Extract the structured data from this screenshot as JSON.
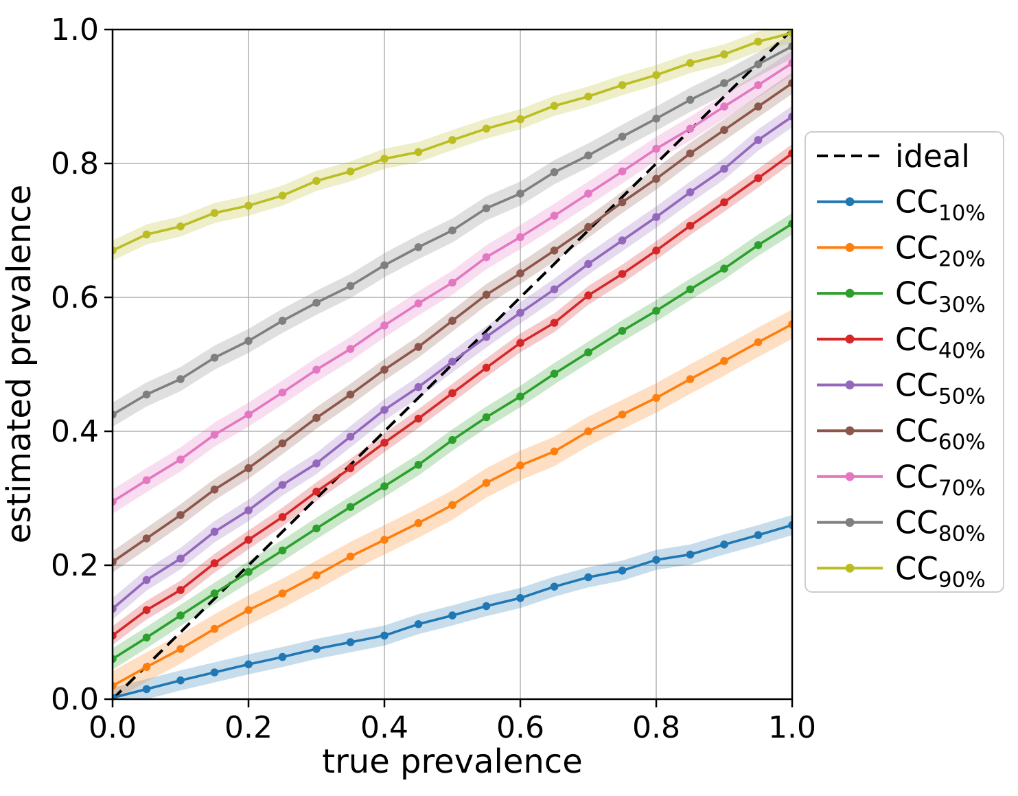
{
  "chart_data": {
    "type": "line",
    "title": "",
    "xlabel": "true prevalence",
    "ylabel": "estimated prevalence",
    "xlim": [
      0,
      1
    ],
    "ylim": [
      0,
      1
    ],
    "grid": true,
    "background_color": "#ffffff",
    "grid_color": "#b0b0b0",
    "axis_color": "#000000",
    "xtick_labels": [
      "0.0",
      "0.2",
      "0.4",
      "0.6",
      "0.8",
      "1.0"
    ],
    "ytick_labels": [
      "0.0",
      "0.2",
      "0.4",
      "0.6",
      "0.8",
      "1.0"
    ],
    "tick_values": [
      0,
      0.2,
      0.4,
      0.6,
      0.8,
      1.0
    ],
    "legend_position": "outside right",
    "legend_border_color": "#cccccc",
    "ideal": {
      "label": "ideal",
      "color": "#000000",
      "style": "dashed",
      "from": [
        0,
        0
      ],
      "to": [
        1,
        1
      ]
    },
    "x": [
      0.0,
      0.05,
      0.1,
      0.15,
      0.2,
      0.25,
      0.3,
      0.35,
      0.4,
      0.45,
      0.5,
      0.55,
      0.6,
      0.65,
      0.7,
      0.75,
      0.8,
      0.85,
      0.9,
      0.95,
      1.0
    ],
    "series": [
      {
        "name": "CC_10%",
        "legend_main": "CC",
        "legend_sub": "10%",
        "color": "#1f77b4",
        "band_halfwidth": 0.015,
        "values": [
          0.002,
          0.015,
          0.028,
          0.04,
          0.052,
          0.063,
          0.075,
          0.085,
          0.095,
          0.112,
          0.125,
          0.139,
          0.151,
          0.168,
          0.182,
          0.192,
          0.208,
          0.216,
          0.231,
          0.245,
          0.26
        ]
      },
      {
        "name": "CC_20%",
        "legend_main": "CC",
        "legend_sub": "20%",
        "color": "#ff7f0e",
        "band_halfwidth": 0.022,
        "values": [
          0.02,
          0.048,
          0.075,
          0.105,
          0.133,
          0.158,
          0.185,
          0.213,
          0.238,
          0.263,
          0.29,
          0.323,
          0.349,
          0.37,
          0.4,
          0.425,
          0.45,
          0.478,
          0.505,
          0.533,
          0.56
        ]
      },
      {
        "name": "CC_30%",
        "legend_main": "CC",
        "legend_sub": "30%",
        "color": "#2ca02c",
        "band_halfwidth": 0.016,
        "values": [
          0.06,
          0.092,
          0.125,
          0.158,
          0.19,
          0.222,
          0.255,
          0.287,
          0.318,
          0.35,
          0.387,
          0.421,
          0.452,
          0.486,
          0.518,
          0.55,
          0.58,
          0.612,
          0.643,
          0.678,
          0.71
        ]
      },
      {
        "name": "CC_40%",
        "legend_main": "CC",
        "legend_sub": "40%",
        "color": "#d62728",
        "band_halfwidth": 0.014,
        "values": [
          0.095,
          0.133,
          0.163,
          0.203,
          0.238,
          0.272,
          0.31,
          0.345,
          0.383,
          0.419,
          0.457,
          0.495,
          0.532,
          0.562,
          0.603,
          0.635,
          0.67,
          0.707,
          0.742,
          0.778,
          0.815
        ]
      },
      {
        "name": "CC_50%",
        "legend_main": "CC",
        "legend_sub": "50%",
        "color": "#9467bd",
        "band_halfwidth": 0.016,
        "values": [
          0.135,
          0.178,
          0.21,
          0.25,
          0.282,
          0.32,
          0.352,
          0.392,
          0.432,
          0.466,
          0.504,
          0.541,
          0.577,
          0.612,
          0.65,
          0.685,
          0.72,
          0.757,
          0.792,
          0.835,
          0.87
        ]
      },
      {
        "name": "CC_60%",
        "legend_main": "CC",
        "legend_sub": "60%",
        "color": "#8c564b",
        "band_halfwidth": 0.016,
        "values": [
          0.205,
          0.24,
          0.275,
          0.313,
          0.345,
          0.382,
          0.42,
          0.455,
          0.492,
          0.526,
          0.565,
          0.604,
          0.636,
          0.67,
          0.705,
          0.742,
          0.777,
          0.815,
          0.85,
          0.885,
          0.92
        ]
      },
      {
        "name": "CC_70%",
        "legend_main": "CC",
        "legend_sub": "70%",
        "color": "#e377c2",
        "band_halfwidth": 0.018,
        "values": [
          0.295,
          0.327,
          0.358,
          0.395,
          0.425,
          0.458,
          0.492,
          0.523,
          0.558,
          0.591,
          0.622,
          0.66,
          0.69,
          0.722,
          0.755,
          0.788,
          0.822,
          0.852,
          0.885,
          0.917,
          0.95
        ]
      },
      {
        "name": "CC_80%",
        "legend_main": "CC",
        "legend_sub": "80%",
        "color": "#7f7f7f",
        "band_halfwidth": 0.018,
        "values": [
          0.425,
          0.455,
          0.478,
          0.51,
          0.535,
          0.565,
          0.592,
          0.617,
          0.648,
          0.675,
          0.7,
          0.733,
          0.755,
          0.787,
          0.812,
          0.84,
          0.867,
          0.895,
          0.92,
          0.948,
          0.975
        ]
      },
      {
        "name": "CC_90%",
        "legend_main": "CC",
        "legend_sub": "90%",
        "color": "#bcbd22",
        "band_halfwidth": 0.015,
        "values": [
          0.67,
          0.694,
          0.706,
          0.726,
          0.737,
          0.752,
          0.774,
          0.788,
          0.807,
          0.817,
          0.835,
          0.852,
          0.866,
          0.886,
          0.9,
          0.917,
          0.932,
          0.95,
          0.963,
          0.982,
          0.995
        ]
      }
    ]
  }
}
